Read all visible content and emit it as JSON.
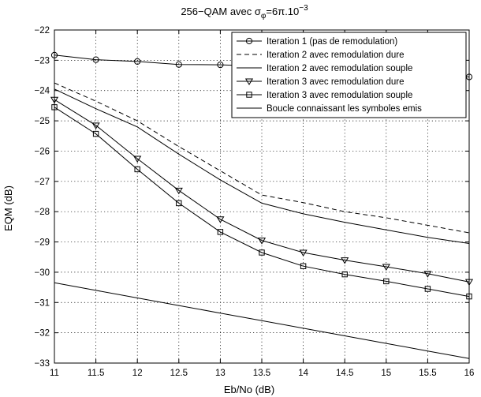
{
  "chart_data": {
    "type": "line",
    "title_prefix": "256−QAM avec σ",
    "title_sub": "φ",
    "title_suffix": "=6π.10",
    "title_exp": "−3",
    "xlabel": "Eb/No (dB)",
    "ylabel": "EQM (dB)",
    "xlim": [
      11,
      16
    ],
    "ylim": [
      -33,
      -22
    ],
    "grid": true,
    "legend_position": "top-right",
    "x_ticks": [
      11,
      11.5,
      12,
      12.5,
      13,
      13.5,
      14,
      14.5,
      15,
      15.5,
      16
    ],
    "x_tick_labels": [
      "11",
      "11.5",
      "12",
      "12.5",
      "13",
      "13.5",
      "14",
      "14.5",
      "15",
      "15.5",
      "16"
    ],
    "y_ticks": [
      -22,
      -23,
      -24,
      -25,
      -26,
      -27,
      -28,
      -29,
      -30,
      -31,
      -32,
      -33
    ],
    "y_tick_labels": [
      "−22",
      "−23",
      "−24",
      "−25",
      "−26",
      "−27",
      "−28",
      "−29",
      "−30",
      "−31",
      "−32",
      "−33"
    ],
    "x": [
      11,
      11.5,
      12,
      12.5,
      13,
      13.5,
      14,
      14.5,
      15,
      15.5,
      16
    ],
    "series": [
      {
        "name": "Iteration 1 (pas de remodulation)",
        "marker": "circle",
        "dash": "solid",
        "values": [
          -22.83,
          -22.98,
          -23.04,
          -23.14,
          -23.15,
          -23.2,
          -23.25,
          -23.3,
          -23.38,
          -23.45,
          -23.55
        ]
      },
      {
        "name": "Iteration 2 avec remodulation dure",
        "marker": "none",
        "dash": "dashed",
        "values": [
          -23.75,
          -24.35,
          -25.0,
          -25.85,
          -26.65,
          -27.45,
          -27.7,
          -28.0,
          -28.2,
          -28.45,
          -28.7
        ]
      },
      {
        "name": "Iteration 2 avec remodulation souple",
        "marker": "none",
        "dash": "solid",
        "values": [
          -23.95,
          -24.6,
          -25.2,
          -26.1,
          -26.95,
          -27.72,
          -28.07,
          -28.35,
          -28.6,
          -28.85,
          -29.05
        ]
      },
      {
        "name": "Iteration 3 avec remodulation dure",
        "marker": "triangle-down",
        "dash": "solid",
        "values": [
          -24.3,
          -25.15,
          -26.25,
          -27.3,
          -28.25,
          -28.95,
          -29.35,
          -29.6,
          -29.82,
          -30.05,
          -30.32
        ]
      },
      {
        "name": "Iteration 3 avec remodulation souple",
        "marker": "square",
        "dash": "solid",
        "values": [
          -24.55,
          -25.43,
          -26.6,
          -27.72,
          -28.67,
          -29.35,
          -29.8,
          -30.07,
          -30.3,
          -30.55,
          -30.8
        ]
      },
      {
        "name": "Boucle connaissant les symboles emis",
        "marker": "none",
        "dash": "solid",
        "values": [
          -30.35,
          -30.6,
          -30.85,
          -31.1,
          -31.35,
          -31.6,
          -31.85,
          -32.1,
          -32.35,
          -32.6,
          -32.85
        ]
      }
    ]
  }
}
